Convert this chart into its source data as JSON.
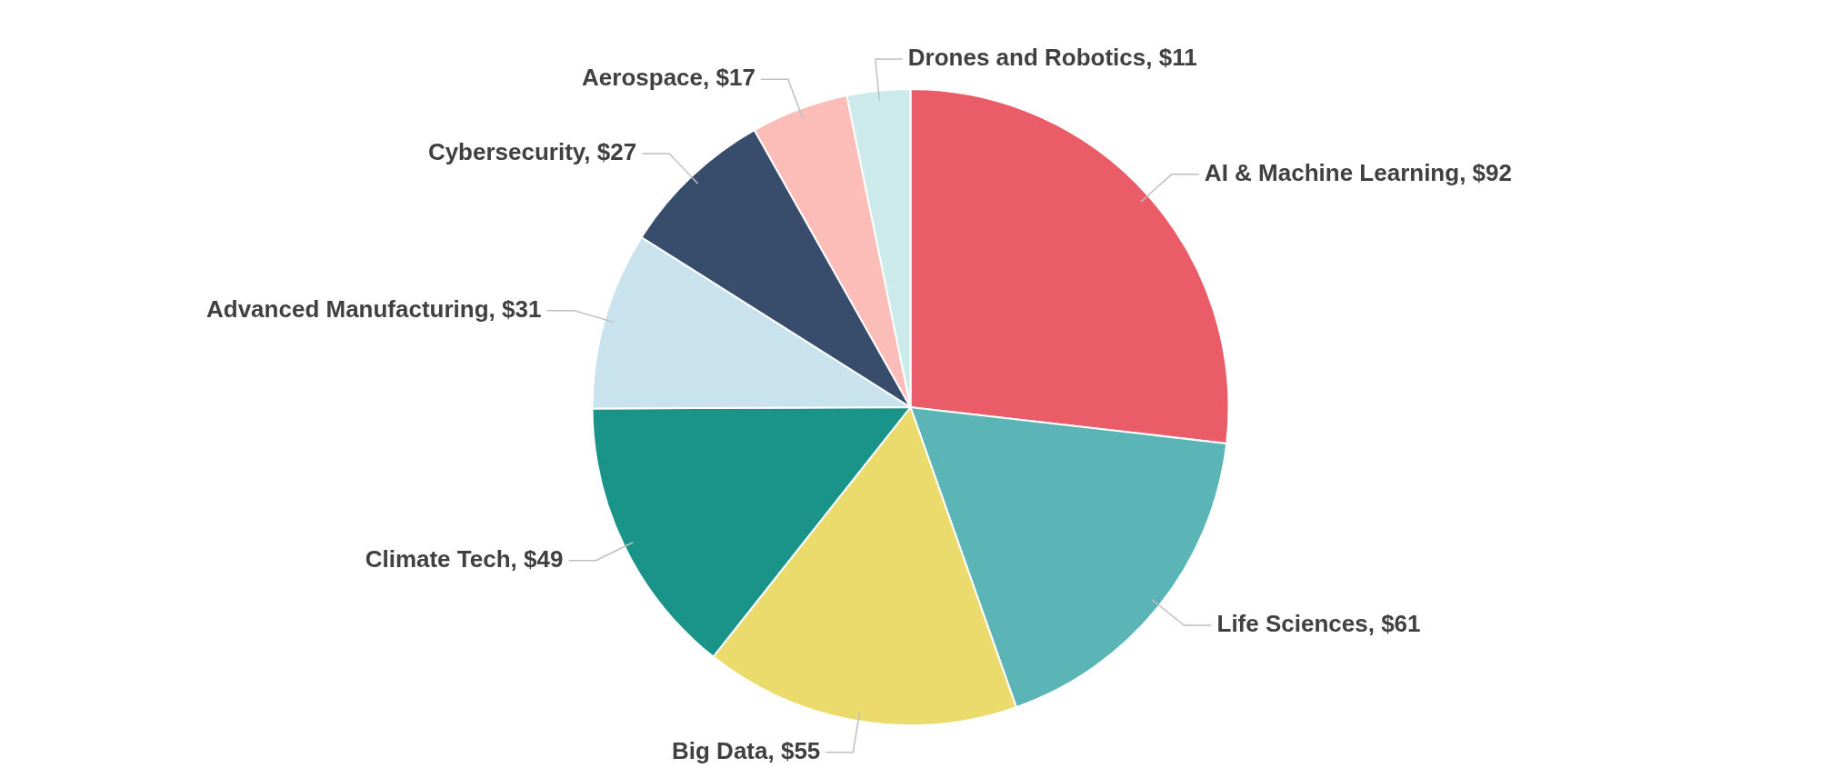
{
  "chart_data": {
    "type": "pie",
    "categories": [
      "AI & Machine Learning",
      "Life Sciences",
      "Big Data",
      "Climate Tech",
      "Advanced Manufacturing",
      "Cybersecurity",
      "Aerospace",
      "Drones and Robotics"
    ],
    "values": [
      92,
      61,
      55,
      49,
      31,
      27,
      17,
      11
    ],
    "value_labels": [
      "$92",
      "$61",
      "$55",
      "$49",
      "$31",
      "$27",
      "$17",
      "$11"
    ],
    "colors": [
      "#ea5c68",
      "#5bb4b5",
      "#eadb6c",
      "#1a9488",
      "#c8e3ee",
      "#384c6c",
      "#fcbdb8",
      "#cdeaea"
    ],
    "legend": false
  }
}
